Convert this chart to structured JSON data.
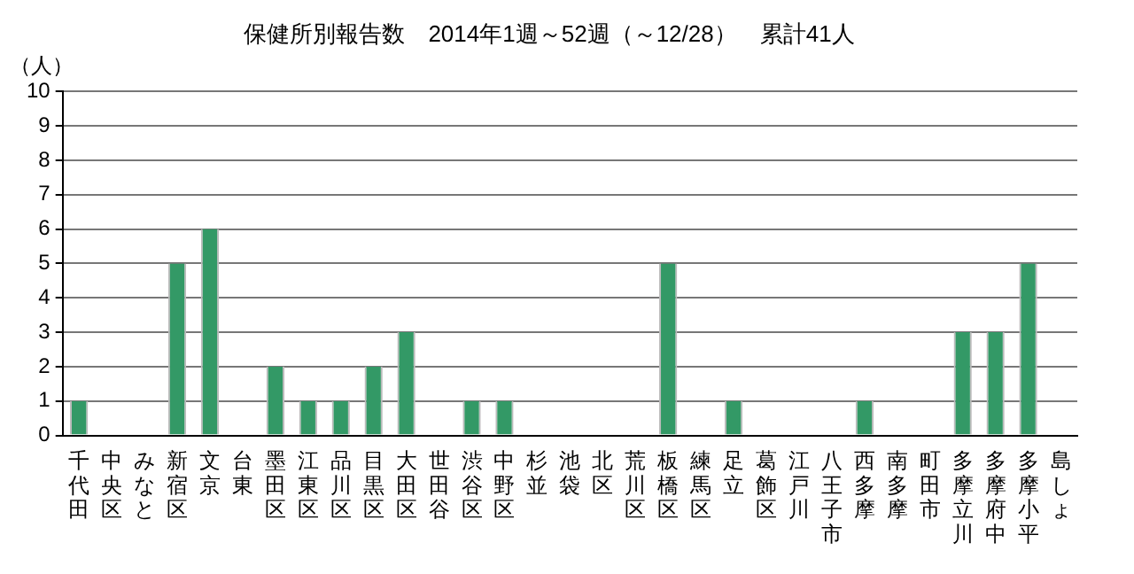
{
  "chart_data": {
    "type": "bar",
    "title": "保健所別報告数　2014年1週～52週（～12/28）　累計41人",
    "ylabel": "（人）",
    "categories": [
      "千代田",
      "中央区",
      "みなと",
      "新宿区",
      "文京",
      "台東",
      "墨田区",
      "江東区",
      "品川区",
      "目黒区",
      "大田区",
      "世田谷",
      "渋谷区",
      "中野区",
      "杉並",
      "池袋",
      "北区",
      "荒川区",
      "板橋区",
      "練馬区",
      "足立",
      "葛飾区",
      "江戸川",
      "八王子市",
      "西多摩",
      "南多摩",
      "町田市",
      "多摩立川",
      "多摩府中",
      "多摩小平",
      "島しょ"
    ],
    "values": [
      1,
      0,
      0,
      5,
      6,
      0,
      2,
      1,
      1,
      2,
      3,
      0,
      1,
      1,
      0,
      0,
      0,
      0,
      5,
      0,
      1,
      0,
      0,
      0,
      1,
      0,
      0,
      3,
      3,
      5,
      0
    ],
    "color": "#339966",
    "ylim": [
      0,
      10
    ],
    "yticks": [
      0,
      1,
      2,
      3,
      4,
      5,
      6,
      7,
      8,
      9,
      10
    ],
    "grid": "y",
    "legend": false
  }
}
